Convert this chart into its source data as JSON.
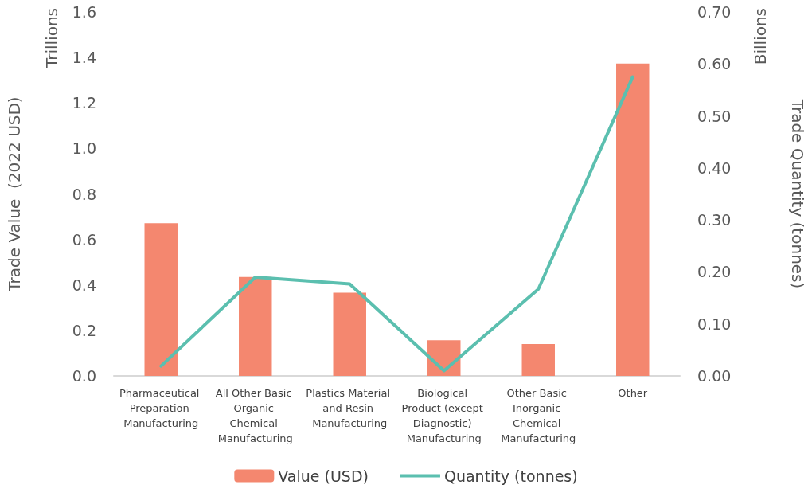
{
  "chart_data": {
    "type": "bar",
    "categories": [
      "Pharmaceutical Preparation Manufacturing",
      "All Other Basic Organic Chemical Manufacturing",
      "Plastics Material and Resin Manufacturing",
      "Biological Product (except Diagnostic) Manufacturing",
      "Other Basic Inorganic Chemical Manufacturing",
      "Other"
    ],
    "series": [
      {
        "name": "Value (USD)",
        "color": "#f4876f",
        "values": [
          0.671,
          0.435,
          0.366,
          0.157,
          0.14,
          1.373
        ]
      },
      {
        "name": "Quantity (tonnes)",
        "type": "line",
        "axis": "y2",
        "color": "#5bbfaf",
        "values": [
          0.019,
          0.19,
          0.177,
          0.01,
          0.167,
          0.575
        ]
      }
    ],
    "ylabel": "Trade Value  (2022 USD)",
    "y2label": "Trade Quantity (tonnes)",
    "annotations": [
      "Trillions",
      "Billions"
    ],
    "ylim": [
      0,
      1.6
    ],
    "yticks": [
      {
        "value": 0,
        "label": "0.0"
      },
      {
        "value": 0.2,
        "label": "0.2"
      },
      {
        "value": 0.4,
        "label": "0.4"
      },
      {
        "value": 0.6,
        "label": "0.6"
      },
      {
        "value": 0.8,
        "label": "0.8"
      },
      {
        "value": 1,
        "label": "1.0"
      },
      {
        "value": 1.2,
        "label": "1.2"
      },
      {
        "value": 1.4,
        "label": "1.4"
      },
      {
        "value": 1.6,
        "label": "1.6"
      }
    ],
    "y2lim": [
      0,
      0.7
    ],
    "y2ticks": [
      {
        "value": 0,
        "label": "0.00"
      },
      {
        "value": 0.1,
        "label": "0.10"
      },
      {
        "value": 0.2,
        "label": "0.20"
      },
      {
        "value": 0.3,
        "label": "0.30"
      },
      {
        "value": 0.4,
        "label": "0.40"
      },
      {
        "value": 0.5,
        "label": "0.50"
      },
      {
        "value": 0.6,
        "label": "0.60"
      },
      {
        "value": 0.7,
        "label": "0.70"
      }
    ],
    "grid": false,
    "legend": "bottom",
    "marker": "none",
    "line_style": "solid"
  }
}
